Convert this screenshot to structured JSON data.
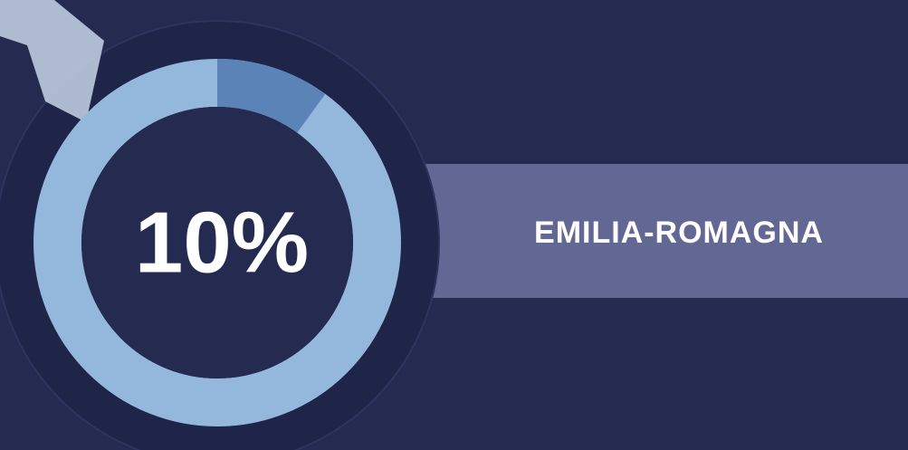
{
  "chart_data": {
    "type": "donut",
    "categories": [
      "EMILIA-ROMAGNA"
    ],
    "values": [
      10
    ],
    "value_labels": [
      "10%"
    ],
    "ylim": [
      0,
      100
    ],
    "color": "#5b83b8",
    "track_color": "#94b8dc"
  }
}
